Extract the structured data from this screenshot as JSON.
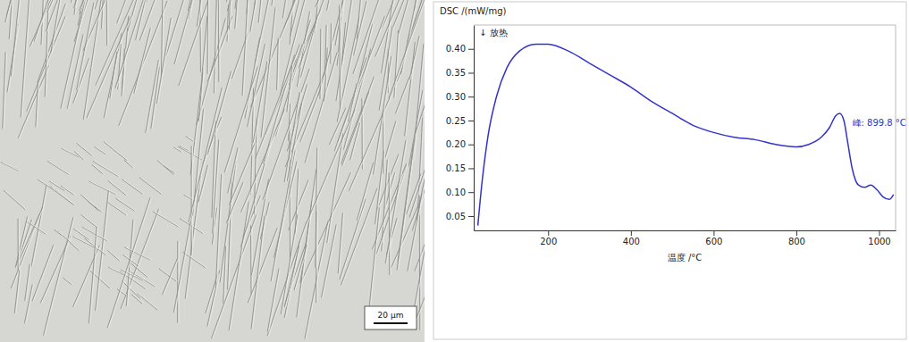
{
  "micrograph": {
    "scale_bar": "20 μm"
  },
  "chart_data": {
    "type": "line",
    "ylabel": "DSC /(mW/mg)",
    "xlabel": "温度 /°C",
    "color": "#3333cc",
    "grid": false,
    "x": [
      30,
      40,
      55,
      75,
      100,
      130,
      170,
      200,
      250,
      300,
      350,
      400,
      450,
      500,
      550,
      600,
      650,
      700,
      750,
      800,
      830,
      860,
      880,
      895,
      905,
      915,
      925,
      935,
      950,
      965,
      980,
      995,
      1010,
      1025,
      1035
    ],
    "values": [
      0.03,
      0.12,
      0.22,
      0.3,
      0.36,
      0.395,
      0.41,
      0.41,
      0.395,
      0.37,
      0.345,
      0.32,
      0.29,
      0.265,
      0.24,
      0.225,
      0.215,
      0.21,
      0.2,
      0.195,
      0.2,
      0.215,
      0.235,
      0.26,
      0.265,
      0.25,
      0.2,
      0.15,
      0.115,
      0.11,
      0.115,
      0.105,
      0.09,
      0.085,
      0.095
    ],
    "xlim": [
      20,
      1040
    ],
    "ylim": [
      0.02,
      0.45
    ],
    "xticks": [
      200,
      400,
      600,
      800,
      1000
    ],
    "yticks": [
      0.05,
      {
        "value": 0.1,
        "label": "0.10"
      },
      0.15,
      {
        "value": 0.2,
        "label": "0.20"
      },
      0.25,
      {
        "value": 0.3,
        "label": "0.30"
      },
      0.35,
      {
        "value": 0.4,
        "label": "0.40"
      }
    ],
    "annotations": [
      {
        "text": "↓ 放热"
      },
      {
        "text": "峰: 899.8 °C",
        "x": 905,
        "y": 0.265
      }
    ]
  }
}
